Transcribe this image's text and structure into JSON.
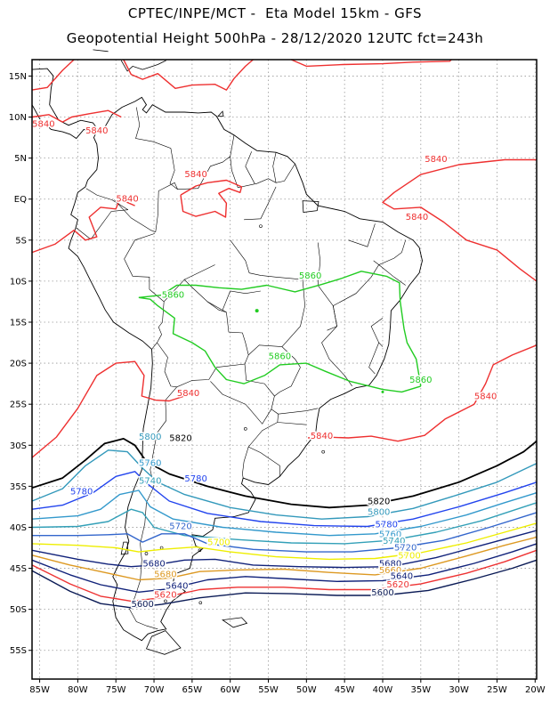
{
  "title": {
    "line1": "CPTEC/INPE/MCT -  Eta Model 15km - GFS",
    "line2": "Geopotential Height 500hPa - 28/12/2020 12UTC fct=243h"
  },
  "axes": {
    "lon_labels": [
      "85W",
      "80W",
      "75W",
      "70W",
      "65W",
      "60W",
      "55W",
      "50W",
      "45W",
      "40W",
      "35W",
      "30W",
      "25W",
      "20W"
    ],
    "lat_labels": [
      "15N",
      "10N",
      "5N",
      "EQ",
      "5S",
      "10S",
      "15S",
      "20S",
      "25S",
      "30S",
      "35S",
      "40S",
      "45S",
      "50S",
      "55S"
    ],
    "lon_range": [
      -86,
      -19.8
    ],
    "lat_range": [
      17,
      -58.5
    ]
  },
  "colors": {
    "c5840": "#ee3030",
    "c5860": "#22cc22",
    "c5820": "#000000",
    "c5800": "#3399bb",
    "c5780": "#2244ee",
    "c5760": "#3399cc",
    "c5740": "#33a0b8",
    "c5720": "#3366cc",
    "c5700": "#eeee00",
    "c5680": "#dd9922",
    "c5660": "#ee6633",
    "c5640": "#11227a",
    "c5620": "#ee3333",
    "c5600": "#0a1a55",
    "coast": "#000000",
    "grid": "#999999"
  },
  "contour_labels": [
    {
      "text": "5840",
      "lon": -84.5,
      "lat": 8.8,
      "color": "c5840"
    },
    {
      "text": "5840",
      "lon": -77.5,
      "lat": 8.0,
      "color": "c5840"
    },
    {
      "text": "5840",
      "lon": -64.5,
      "lat": 2.7,
      "color": "c5840"
    },
    {
      "text": "5840",
      "lon": -73.5,
      "lat": -0.3,
      "color": "c5840"
    },
    {
      "text": "5840",
      "lon": -33,
      "lat": 4.5,
      "color": "c5840"
    },
    {
      "text": "5840",
      "lon": -35.5,
      "lat": -2.5,
      "color": "c5840"
    },
    {
      "text": "5840",
      "lon": -65.5,
      "lat": -24.0,
      "color": "c5840"
    },
    {
      "text": "5840",
      "lon": -48,
      "lat": -29.2,
      "color": "c5840"
    },
    {
      "text": "5840",
      "lon": -26.5,
      "lat": -24.4,
      "color": "c5840"
    },
    {
      "text": "5860",
      "lon": -49.5,
      "lat": -9.7,
      "color": "c5860"
    },
    {
      "text": "5860",
      "lon": -67.5,
      "lat": -12.0,
      "color": "c5860"
    },
    {
      "text": "5860",
      "lon": -53.5,
      "lat": -19.5,
      "color": "c5860"
    },
    {
      "text": "5860",
      "lon": -35,
      "lat": -22.4,
      "color": "c5860"
    },
    {
      "text": "5820",
      "lon": -66.5,
      "lat": -29.5,
      "color": "c5820"
    },
    {
      "text": "5820",
      "lon": -40.5,
      "lat": -37.2,
      "color": "c5820"
    },
    {
      "text": "5800",
      "lon": -70.5,
      "lat": -29.3,
      "color": "c5800"
    },
    {
      "text": "5800",
      "lon": -40.5,
      "lat": -38.5,
      "color": "c5800"
    },
    {
      "text": "5780",
      "lon": -64.5,
      "lat": -34.4,
      "color": "c5780"
    },
    {
      "text": "5780",
      "lon": -79.5,
      "lat": -36.0,
      "color": "c5780"
    },
    {
      "text": "5780",
      "lon": -39.5,
      "lat": -40.0,
      "color": "c5780"
    },
    {
      "text": "5760",
      "lon": -70.5,
      "lat": -32.5,
      "color": "c5760"
    },
    {
      "text": "5760",
      "lon": -39,
      "lat": -41.2,
      "color": "c5760"
    },
    {
      "text": "5740",
      "lon": -70.5,
      "lat": -34.7,
      "color": "c5740"
    },
    {
      "text": "5740",
      "lon": -38.5,
      "lat": -42.0,
      "color": "c5740"
    },
    {
      "text": "5720",
      "lon": -66.5,
      "lat": -40.2,
      "color": "c5720"
    },
    {
      "text": "5720",
      "lon": -37,
      "lat": -42.8,
      "color": "c5720"
    },
    {
      "text": "5700",
      "lon": -61.5,
      "lat": -42.2,
      "color": "c5700"
    },
    {
      "text": "5700",
      "lon": -36.5,
      "lat": -43.8,
      "color": "c5700"
    },
    {
      "text": "5680",
      "lon": -70,
      "lat": -44.8,
      "color": "c5640"
    },
    {
      "text": "5680",
      "lon": -39,
      "lat": -44.8,
      "color": "c5640"
    },
    {
      "text": "5680",
      "lon": -68.5,
      "lat": -46.1,
      "color": "c5680"
    },
    {
      "text": "5660",
      "lon": -39,
      "lat": -45.6,
      "color": "c5680"
    },
    {
      "text": "5640",
      "lon": -67,
      "lat": -47.5,
      "color": "c5640"
    },
    {
      "text": "5640",
      "lon": -37.5,
      "lat": -46.3,
      "color": "c5640"
    },
    {
      "text": "5620",
      "lon": -68.5,
      "lat": -48.6,
      "color": "c5620"
    },
    {
      "text": "5620",
      "lon": -38,
      "lat": -47.3,
      "color": "c5620"
    },
    {
      "text": "5600",
      "lon": -71.5,
      "lat": -49.7,
      "color": "c5600"
    },
    {
      "text": "5600",
      "lon": -40,
      "lat": -48.3,
      "color": "c5600"
    }
  ]
}
